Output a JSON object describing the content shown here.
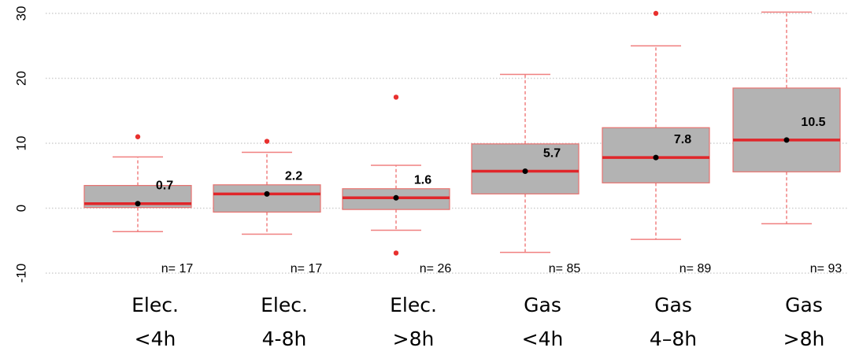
{
  "chart_data": {
    "type": "box",
    "title": "",
    "xlabel": "",
    "ylabel": "",
    "ylim": [
      -10,
      30
    ],
    "yticks": [
      "-10",
      "0",
      "10",
      "20",
      "30"
    ],
    "grid": true,
    "categories": [
      {
        "line1": "Elec.",
        "line2": "<4h"
      },
      {
        "line1": "Elec.",
        "line2": "4-8h"
      },
      {
        "line1": "Elec.",
        "line2": ">8h"
      },
      {
        "line1": "Gas",
        "line2": "<4h"
      },
      {
        "line1": "Gas",
        "line2": "4–8h"
      },
      {
        "line1": "Gas",
        "line2": ">8h"
      }
    ],
    "boxes": [
      {
        "whisker_low": -3.6,
        "q1": 0.1,
        "median": 0.7,
        "q3": 3.5,
        "whisker_high": 7.9,
        "mean": 0.7,
        "mean_label": "0.7",
        "outliers": [
          11.0
        ],
        "n_label": "n= 17"
      },
      {
        "whisker_low": -4.0,
        "q1": -0.6,
        "median": 2.2,
        "q3": 3.6,
        "whisker_high": 8.6,
        "mean": 2.2,
        "mean_label": "2.2",
        "outliers": [
          10.3
        ],
        "n_label": "n= 17"
      },
      {
        "whisker_low": -3.4,
        "q1": -0.2,
        "median": 1.6,
        "q3": 3.0,
        "whisker_high": 6.6,
        "mean": 1.6,
        "mean_label": "1.6",
        "outliers": [
          17.1,
          -6.9
        ],
        "n_label": "n= 26"
      },
      {
        "whisker_low": -6.8,
        "q1": 2.2,
        "median": 5.7,
        "q3": 9.9,
        "whisker_high": 20.6,
        "mean": 5.7,
        "mean_label": "5.7",
        "outliers": [],
        "n_label": "n= 85"
      },
      {
        "whisker_low": -4.8,
        "q1": 3.9,
        "median": 7.8,
        "q3": 12.4,
        "whisker_high": 25.0,
        "mean": 7.8,
        "mean_label": "7.8",
        "outliers": [
          30.0
        ],
        "n_label": "n= 89"
      },
      {
        "whisker_low": -2.4,
        "q1": 5.6,
        "median": 10.5,
        "q3": 18.5,
        "whisker_high": 30.2,
        "mean": 10.5,
        "mean_label": "10.5",
        "outliers": [],
        "n_label": "n= 93"
      }
    ],
    "colors": {
      "box_fill": "#b3b3b3",
      "box_border": "#e8716e",
      "median": "#e0262a",
      "whisker": "#f08080",
      "outlier": "#e8302e",
      "mean": "#000000",
      "grid": "#cfcfcf"
    }
  }
}
